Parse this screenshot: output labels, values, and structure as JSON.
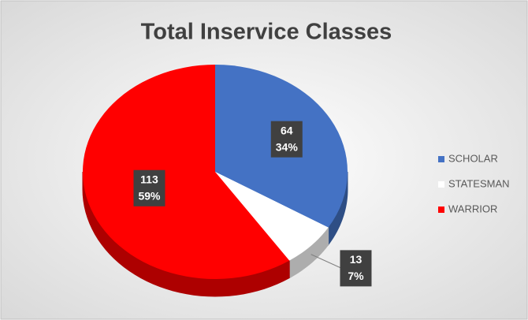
{
  "chart_data": {
    "type": "pie",
    "title": "Total Inservice Classes",
    "categories": [
      "SCHOLAR",
      "STATESMAN",
      "WARRIOR"
    ],
    "values": [
      64,
      13,
      113
    ],
    "percent_labels": [
      "34%",
      "7%",
      "59%"
    ],
    "colors": [
      "#4472c4",
      "#ffffff",
      "#ff0000"
    ],
    "legend": "right"
  }
}
